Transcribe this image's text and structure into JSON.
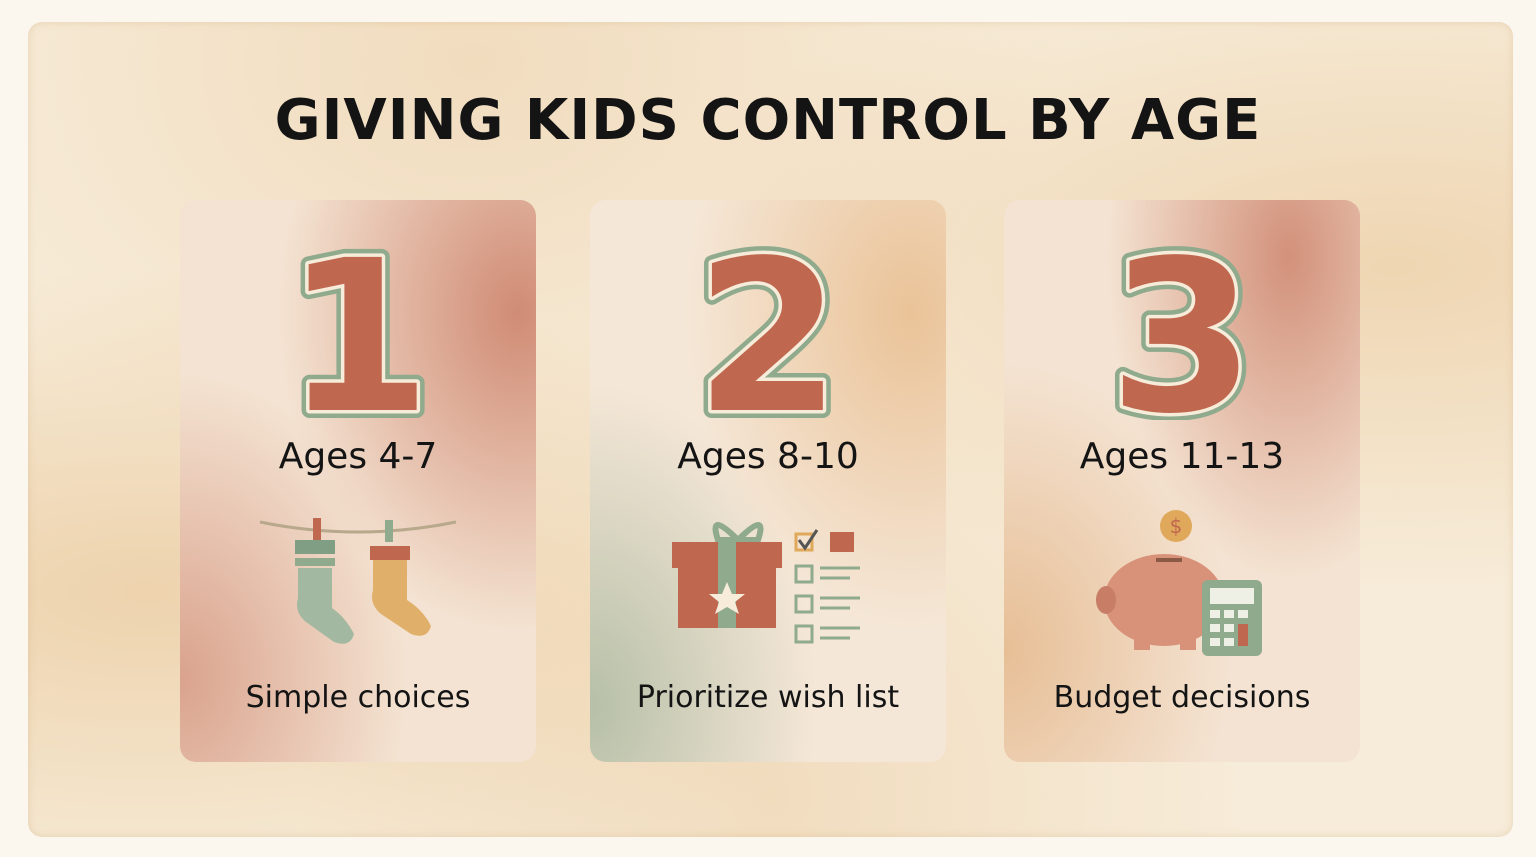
{
  "title": "GIVING KIDS CONTROL BY AGE",
  "colors": {
    "terracotta": "#c0674f",
    "sage": "#8faa8c",
    "mustard": "#e0a85a",
    "cream": "#f7ecd9"
  },
  "cards": [
    {
      "number": "1",
      "age": "Ages 4-7",
      "caption": "Simple choices",
      "icon": "socks-on-clothesline-icon"
    },
    {
      "number": "2",
      "age": "Ages 8-10",
      "caption": "Prioritize wish list",
      "icon": "gift-checklist-icon"
    },
    {
      "number": "3",
      "age": "Ages 11-13",
      "caption": "Budget decisions",
      "icon": "piggy-bank-calculator-icon"
    }
  ]
}
